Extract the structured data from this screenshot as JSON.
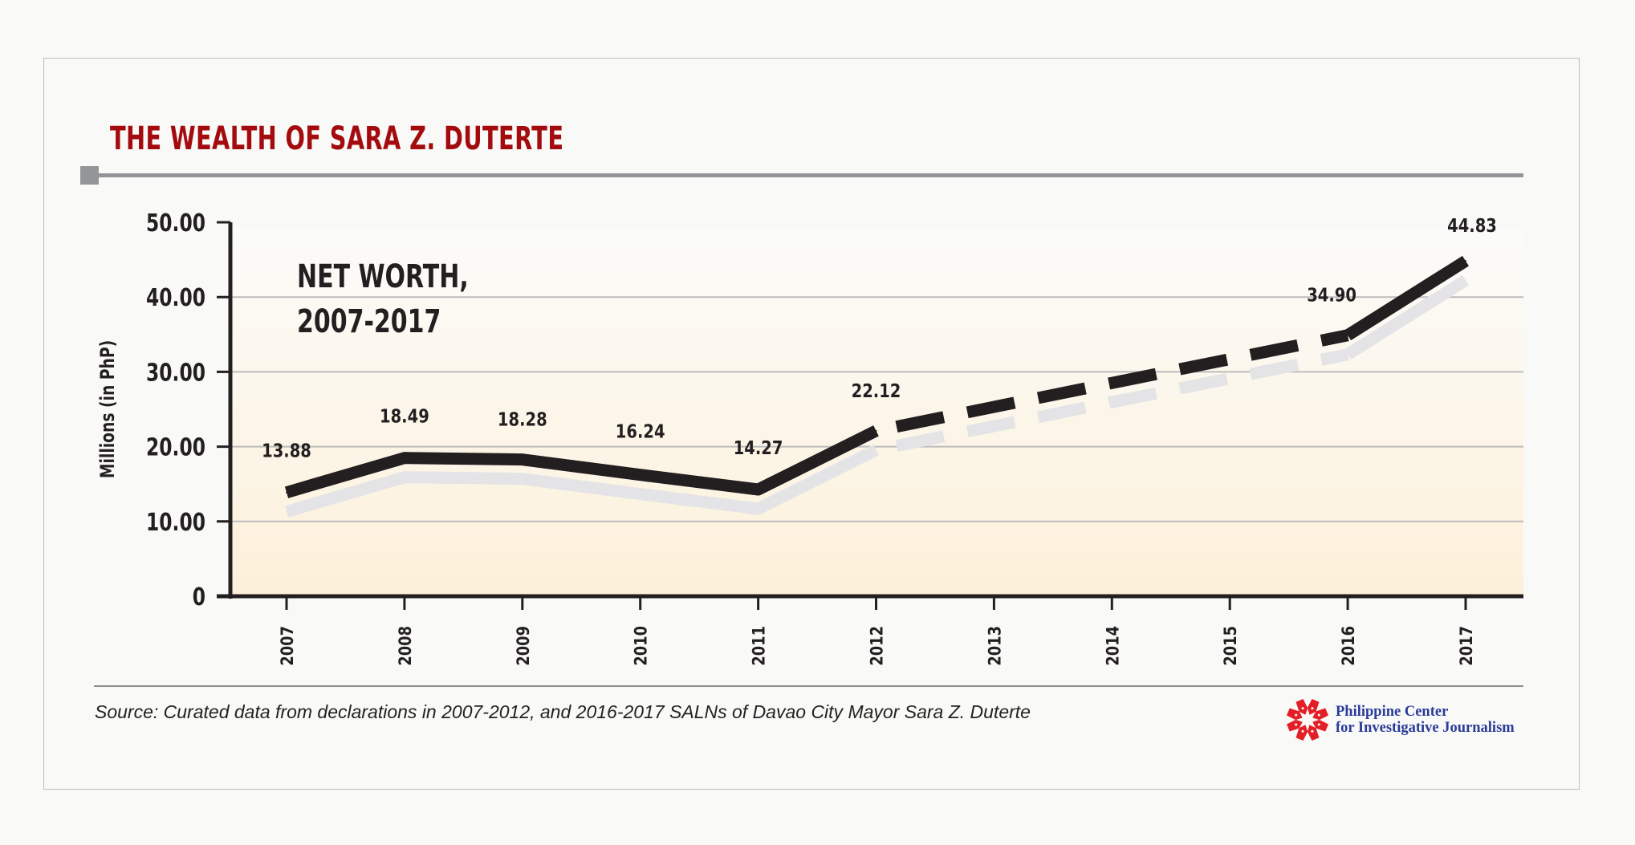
{
  "header": {
    "title": "THE WEALTH OF SARA Z. DUTERTE"
  },
  "chart_data": {
    "type": "line",
    "title": "THE WEALTH OF SARA Z. DUTERTE",
    "subtitle": "NET WORTH, 2007-2017",
    "subtitle_lines": [
      "NET WORTH,",
      "2007-2017"
    ],
    "xlabel": "",
    "ylabel": "Millions (in PhP)",
    "ylim": [
      0,
      50
    ],
    "yticks": [
      0,
      10,
      20,
      30,
      40,
      50
    ],
    "ytick_labels": [
      "0",
      "10.00",
      "20.00",
      "30.00",
      "40.00",
      "50.00"
    ],
    "categories": [
      "2007",
      "2008",
      "2009",
      "2010",
      "2011",
      "2012",
      "2013",
      "2014",
      "2015",
      "2016",
      "2017"
    ],
    "grid": true,
    "series": [
      {
        "name": "Net worth",
        "points": [
          {
            "x": "2007",
            "y": 13.88,
            "label": "13.88"
          },
          {
            "x": "2008",
            "y": 18.49,
            "label": "18.49"
          },
          {
            "x": "2009",
            "y": 18.28,
            "label": "18.28"
          },
          {
            "x": "2010",
            "y": 16.24,
            "label": "16.24"
          },
          {
            "x": "2011",
            "y": 14.27,
            "label": "14.27"
          },
          {
            "x": "2012",
            "y": 22.12,
            "label": "22.12"
          },
          {
            "x": "2016",
            "y": 34.9,
            "label": "34.90"
          },
          {
            "x": "2017",
            "y": 44.83,
            "label": "44.83"
          }
        ],
        "solid_segments": [
          [
            "2007",
            "2012"
          ],
          [
            "2016",
            "2017"
          ]
        ],
        "dashed_segments": [
          [
            "2012",
            "2016"
          ]
        ],
        "color": "#231f20",
        "shadow_color": "#e4e4e6"
      }
    ],
    "colors": {
      "axis": "#231f20",
      "grid": "#bcbcbc",
      "plot_top": "#fbfbf9",
      "plot_bottom": "#fdf0d9"
    }
  },
  "footer": {
    "source": "Source: Curated data from declarations in 2007-2012, and 2016-2017 SALNs of Davao City Mayor Sara Z. Duterte",
    "logo_line1": "Philippine Center",
    "logo_line2": "for Investigative Journalism",
    "logo_icon": "pen-nib-sunburst-icon",
    "logo_color": "#e31e26",
    "logo_text_color": "#2a3c99"
  }
}
